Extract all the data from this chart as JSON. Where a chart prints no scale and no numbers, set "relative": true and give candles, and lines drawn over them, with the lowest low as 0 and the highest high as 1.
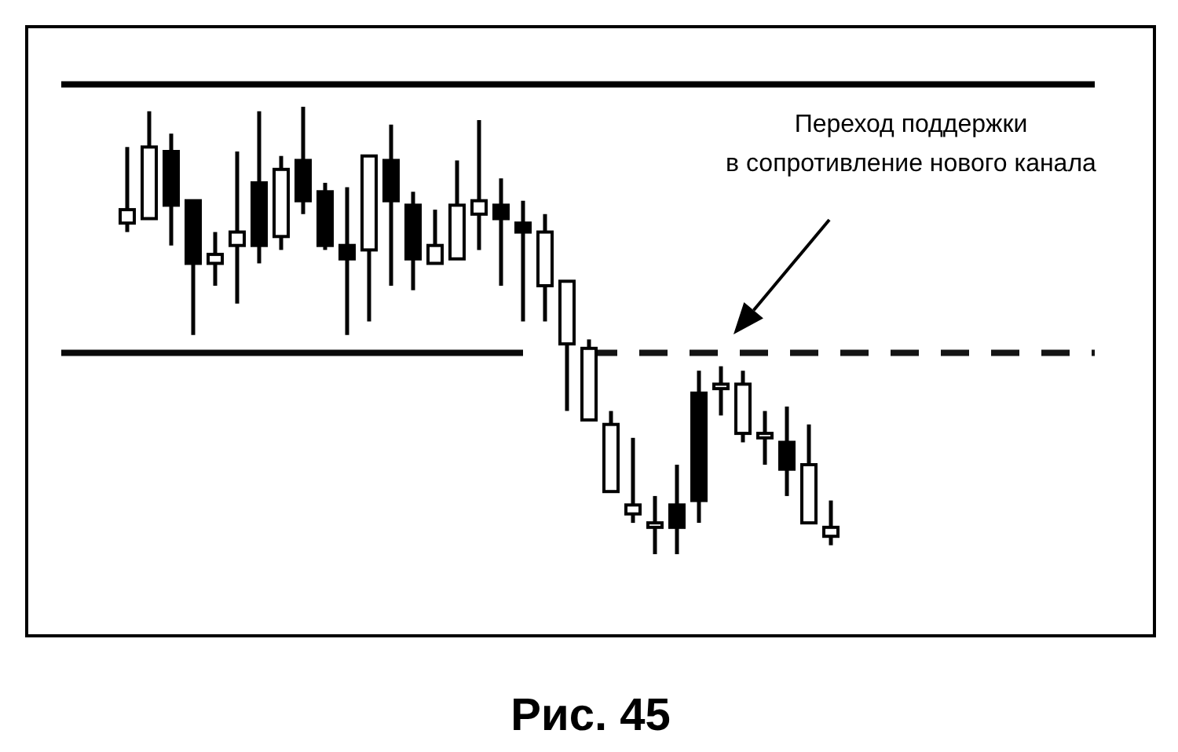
{
  "chart_data": {
    "type": "candlestick",
    "title": "Рис. 45",
    "relative": true,
    "categories": [
      null,
      null,
      null,
      null,
      null,
      null,
      null,
      null,
      null,
      null,
      null,
      null,
      null,
      null,
      null,
      null,
      null,
      null,
      null,
      null,
      null,
      null,
      null,
      null,
      null,
      null,
      null,
      null,
      null,
      null,
      null,
      null,
      null,
      null,
      null,
      null,
      null,
      null,
      null,
      null,
      null,
      null,
      null,
      null,
      null,
      null,
      null,
      null
    ],
    "ohlc": [
      null,
      null,
      null,
      [
        0.74,
        0.91,
        0.72,
        0.77
      ],
      [
        0.75,
        0.99,
        0.75,
        0.91
      ],
      [
        0.9,
        0.94,
        0.69,
        0.78
      ],
      [
        0.79,
        0.79,
        0.49,
        0.65
      ],
      [
        0.65,
        0.72,
        0.6,
        0.67
      ],
      [
        0.69,
        0.9,
        0.56,
        0.72
      ],
      [
        0.83,
        0.99,
        0.65,
        0.69
      ],
      [
        0.71,
        0.89,
        0.68,
        0.86
      ],
      [
        0.88,
        1,
        0.76,
        0.79
      ],
      [
        0.81,
        0.83,
        0.68,
        0.69
      ],
      [
        0.69,
        0.82,
        0.49,
        0.66
      ],
      [
        0.68,
        0.89,
        0.52,
        0.89
      ],
      [
        0.88,
        0.96,
        0.6,
        0.79
      ],
      [
        0.78,
        0.81,
        0.59,
        0.66
      ],
      [
        0.65,
        0.77,
        0.65,
        0.69
      ],
      [
        0.66,
        0.88,
        0.66,
        0.78
      ],
      [
        0.76,
        0.97,
        0.68,
        0.79
      ],
      [
        0.78,
        0.84,
        0.6,
        0.75
      ],
      [
        0.74,
        0.79,
        0.52,
        0.72
      ],
      [
        0.6,
        0.76,
        0.52,
        0.72
      ],
      [
        0.47,
        0.61,
        0.32,
        0.61
      ],
      [
        0.3,
        0.48,
        0.3,
        0.46
      ],
      [
        0.14,
        0.32,
        0.14,
        0.29
      ],
      [
        0.09,
        0.26,
        0.07,
        0.11
      ],
      [
        0.06,
        0.13,
        0,
        0.07
      ],
      [
        0.11,
        0.2,
        0,
        0.06
      ],
      [
        0.36,
        0.41,
        0.07,
        0.12
      ],
      [
        0.37,
        0.42,
        0.31,
        0.38
      ],
      [
        0.27,
        0.41,
        0.25,
        0.38
      ],
      [
        0.26,
        0.32,
        0.2,
        0.27
      ],
      [
        0.25,
        0.33,
        0.13,
        0.19
      ],
      [
        0.07,
        0.29,
        0.07,
        0.2
      ],
      [
        0.04,
        0.12,
        0.02,
        0.06
      ],
      null,
      null,
      null,
      null,
      null,
      null,
      null,
      null,
      null,
      null,
      null,
      null
    ],
    "series": [
      {
        "type": "line",
        "color": "#0a0a0a",
        "line_style": "solid",
        "values": [
          0.45,
          0.45,
          0.45,
          0.45,
          0.45,
          0.45,
          0.45,
          0.45,
          0.45,
          0.45,
          0.45,
          0.45,
          0.45,
          0.45,
          0.45,
          0.45,
          0.45,
          0.45,
          0.45,
          0.45,
          0.45,
          0.45,
          null,
          null,
          null,
          null,
          null,
          null,
          null,
          null,
          null,
          null,
          null,
          null,
          null,
          null,
          null,
          null,
          null,
          null,
          null,
          null,
          null,
          null,
          null,
          null,
          null,
          null
        ]
      },
      {
        "type": "line",
        "color": "#141414",
        "line_style": "dashed",
        "values": [
          null,
          null,
          null,
          null,
          null,
          null,
          null,
          null,
          null,
          null,
          null,
          null,
          null,
          null,
          null,
          null,
          null,
          null,
          null,
          null,
          null,
          null,
          null,
          null,
          0.45,
          0.45,
          0.45,
          0.45,
          0.45,
          0.45,
          0.45,
          0.45,
          0.45,
          0.45,
          0.45,
          0.45,
          0.45,
          0.45,
          0.45,
          0.45,
          0.45,
          0.45,
          0.45,
          0.45,
          0.45,
          0.45,
          0.45,
          0.45
        ]
      }
    ],
    "ref_lines": [
      {
        "axis": "y",
        "value": 1.05,
        "color": "#000000",
        "line_style": "solid"
      }
    ],
    "annotations": [
      "Переход поддержки\nв сопротивление нового канала"
    ]
  }
}
